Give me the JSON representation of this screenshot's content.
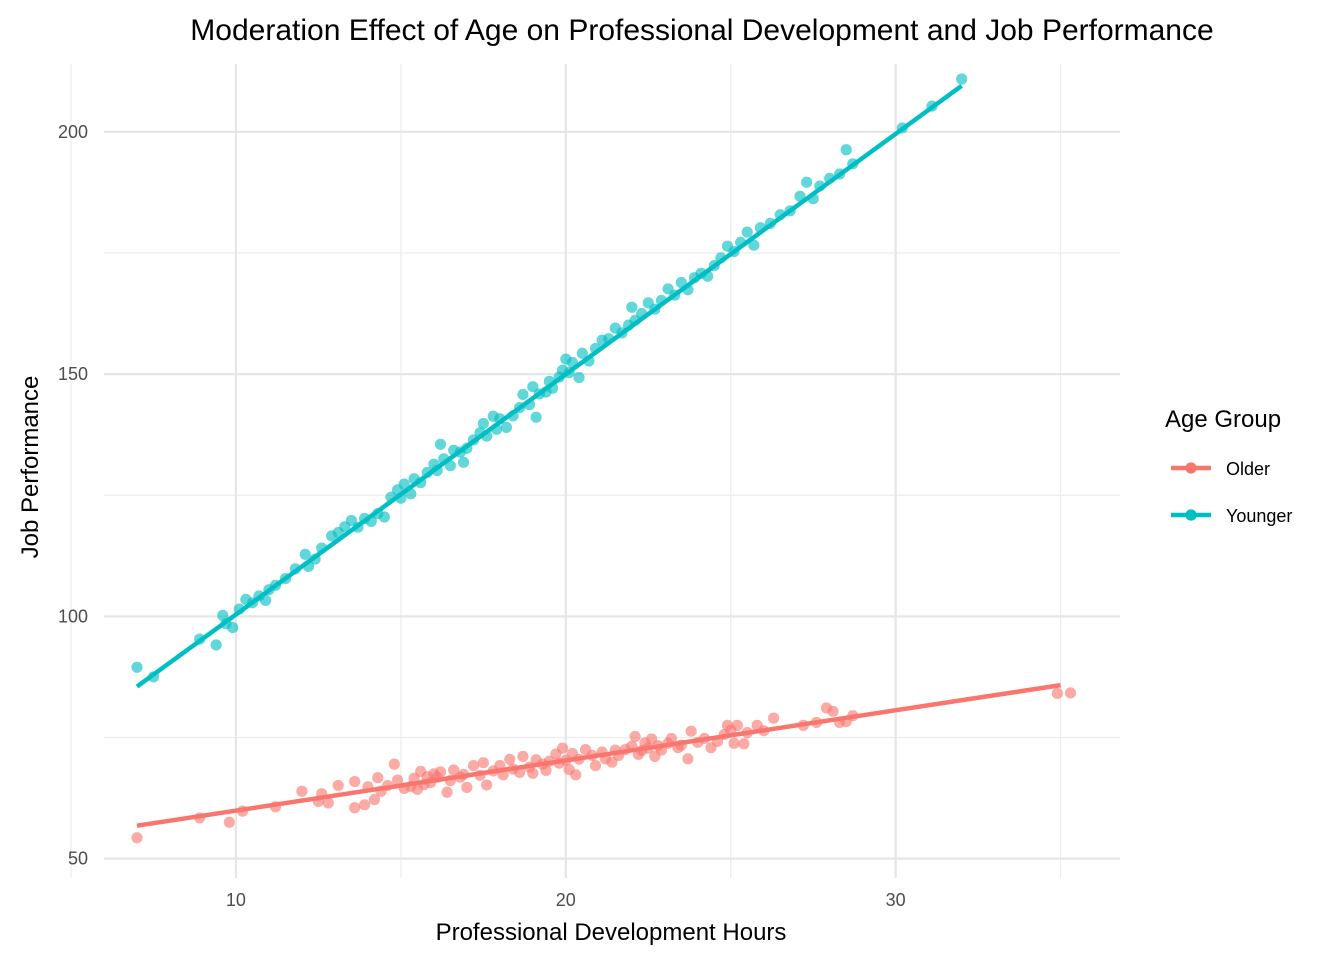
{
  "chart_data": {
    "type": "scatter",
    "title": "Moderation Effect of Age on Professional Development and Job Performance",
    "xlabel": "Professional Development Hours",
    "ylabel": "Job Performance",
    "xlim": [
      6,
      36.8
    ],
    "ylim": [
      46,
      214
    ],
    "x_ticks": [
      10,
      20,
      30
    ],
    "y_ticks": [
      50,
      100,
      150,
      200
    ],
    "x_tick_labels": [
      "10",
      "20",
      "30"
    ],
    "y_tick_labels": [
      "50",
      "100",
      "150",
      "200"
    ],
    "grid": true,
    "legend": {
      "title": "Age Group",
      "placement": "right"
    },
    "series": [
      {
        "name": "Older",
        "color": "#F8766D",
        "fit": {
          "x": [
            7.0,
            35.0
          ],
          "y": [
            56.8,
            85.8
          ]
        },
        "points": [
          [
            7.0,
            54.3
          ],
          [
            8.9,
            58.4
          ],
          [
            9.8,
            57.5
          ],
          [
            10.2,
            59.8
          ],
          [
            11.2,
            60.7
          ],
          [
            12.0,
            63.9
          ],
          [
            12.5,
            61.8
          ],
          [
            12.6,
            63.4
          ],
          [
            12.8,
            61.5
          ],
          [
            13.1,
            65.1
          ],
          [
            13.6,
            60.5
          ],
          [
            13.6,
            65.9
          ],
          [
            13.9,
            61.1
          ],
          [
            14.0,
            64.8
          ],
          [
            14.2,
            62.2
          ],
          [
            14.3,
            66.7
          ],
          [
            14.4,
            63.9
          ],
          [
            14.6,
            65.1
          ],
          [
            14.8,
            69.5
          ],
          [
            14.9,
            66.2
          ],
          [
            15.1,
            64.5
          ],
          [
            15.3,
            64.9
          ],
          [
            15.4,
            66.6
          ],
          [
            15.5,
            64.3
          ],
          [
            15.6,
            68.0
          ],
          [
            15.7,
            65.3
          ],
          [
            15.8,
            66.9
          ],
          [
            15.9,
            65.7
          ],
          [
            16.0,
            67.5
          ],
          [
            16.1,
            66.8
          ],
          [
            16.2,
            67.9
          ],
          [
            16.4,
            63.7
          ],
          [
            16.5,
            66.1
          ],
          [
            16.6,
            68.3
          ],
          [
            16.8,
            66.8
          ],
          [
            16.9,
            67.4
          ],
          [
            17.0,
            64.7
          ],
          [
            17.2,
            69.2
          ],
          [
            17.4,
            67.2
          ],
          [
            17.5,
            69.8
          ],
          [
            17.6,
            65.2
          ],
          [
            17.8,
            68.1
          ],
          [
            18.0,
            69.2
          ],
          [
            18.1,
            67.3
          ],
          [
            18.3,
            70.5
          ],
          [
            18.4,
            68.5
          ],
          [
            18.6,
            67.8
          ],
          [
            18.7,
            71.1
          ],
          [
            18.9,
            68.9
          ],
          [
            19.0,
            67.6
          ],
          [
            19.1,
            70.4
          ],
          [
            19.3,
            69.5
          ],
          [
            19.4,
            68.2
          ],
          [
            19.5,
            70.1
          ],
          [
            19.7,
            71.6
          ],
          [
            19.8,
            69.7
          ],
          [
            19.9,
            72.8
          ],
          [
            20.0,
            70.3
          ],
          [
            20.1,
            68.4
          ],
          [
            20.2,
            71.7
          ],
          [
            20.3,
            67.3
          ],
          [
            20.4,
            70.5
          ],
          [
            20.6,
            72.5
          ],
          [
            20.8,
            71.3
          ],
          [
            20.9,
            69.2
          ],
          [
            21.1,
            72.0
          ],
          [
            21.2,
            70.6
          ],
          [
            21.4,
            69.9
          ],
          [
            21.5,
            72.4
          ],
          [
            21.6,
            71.3
          ],
          [
            21.8,
            72.5
          ],
          [
            22.0,
            73.2
          ],
          [
            22.1,
            75.2
          ],
          [
            22.2,
            71.5
          ],
          [
            22.3,
            72.3
          ],
          [
            22.4,
            73.9
          ],
          [
            22.5,
            72.8
          ],
          [
            22.6,
            74.7
          ],
          [
            22.7,
            71.1
          ],
          [
            22.8,
            73.3
          ],
          [
            22.9,
            72.4
          ],
          [
            23.1,
            73.8
          ],
          [
            23.2,
            74.8
          ],
          [
            23.4,
            72.9
          ],
          [
            23.5,
            73.4
          ],
          [
            23.7,
            70.6
          ],
          [
            23.8,
            76.3
          ],
          [
            24.0,
            74.0
          ],
          [
            24.2,
            74.8
          ],
          [
            24.4,
            72.9
          ],
          [
            24.6,
            74.2
          ],
          [
            24.8,
            75.6
          ],
          [
            24.9,
            77.5
          ],
          [
            25.0,
            76.5
          ],
          [
            25.1,
            73.8
          ],
          [
            25.2,
            77.5
          ],
          [
            25.4,
            73.7
          ],
          [
            25.5,
            76.0
          ],
          [
            25.8,
            77.5
          ],
          [
            26.0,
            76.4
          ],
          [
            26.3,
            79.0
          ],
          [
            27.2,
            77.5
          ],
          [
            27.6,
            78.1
          ],
          [
            27.9,
            81.1
          ],
          [
            28.1,
            80.4
          ],
          [
            28.3,
            78.1
          ],
          [
            28.5,
            78.3
          ],
          [
            28.7,
            79.5
          ],
          [
            34.9,
            84.1
          ],
          [
            35.3,
            84.2
          ]
        ]
      },
      {
        "name": "Younger",
        "color": "#00BFC4",
        "fit": {
          "x": [
            7.0,
            32.0
          ],
          "y": [
            85.5,
            209.5
          ]
        },
        "points": [
          [
            7.0,
            89.5
          ],
          [
            7.5,
            87.5
          ],
          [
            8.9,
            95.3
          ],
          [
            9.4,
            94.1
          ],
          [
            9.6,
            100.2
          ],
          [
            9.7,
            98.5
          ],
          [
            9.9,
            97.7
          ],
          [
            10.1,
            101.5
          ],
          [
            10.3,
            103.5
          ],
          [
            10.5,
            102.8
          ],
          [
            10.7,
            104.2
          ],
          [
            10.9,
            103.3
          ],
          [
            11.0,
            105.5
          ],
          [
            11.2,
            106.4
          ],
          [
            11.5,
            107.8
          ],
          [
            11.8,
            109.8
          ],
          [
            12.1,
            112.8
          ],
          [
            12.2,
            110.3
          ],
          [
            12.4,
            111.8
          ],
          [
            12.6,
            114.1
          ],
          [
            12.9,
            116.6
          ],
          [
            13.1,
            117.3
          ],
          [
            13.3,
            118.5
          ],
          [
            13.5,
            119.8
          ],
          [
            13.7,
            118.4
          ],
          [
            13.9,
            120.2
          ],
          [
            14.1,
            119.6
          ],
          [
            14.3,
            121.2
          ],
          [
            14.5,
            120.5
          ],
          [
            14.7,
            124.6
          ],
          [
            14.9,
            126.1
          ],
          [
            15.0,
            124.4
          ],
          [
            15.1,
            127.3
          ],
          [
            15.3,
            125.3
          ],
          [
            15.4,
            128.4
          ],
          [
            15.6,
            127.6
          ],
          [
            15.8,
            129.7
          ],
          [
            16.0,
            131.4
          ],
          [
            16.1,
            130.1
          ],
          [
            16.2,
            135.5
          ],
          [
            16.3,
            132.5
          ],
          [
            16.5,
            131.1
          ],
          [
            16.6,
            134.3
          ],
          [
            16.8,
            133.9
          ],
          [
            16.9,
            131.8
          ],
          [
            17.0,
            134.7
          ],
          [
            17.2,
            136.4
          ],
          [
            17.4,
            137.9
          ],
          [
            17.5,
            139.8
          ],
          [
            17.6,
            137.2
          ],
          [
            17.8,
            141.3
          ],
          [
            17.9,
            138.6
          ],
          [
            18.0,
            140.8
          ],
          [
            18.2,
            139.0
          ],
          [
            18.4,
            141.4
          ],
          [
            18.6,
            143.1
          ],
          [
            18.7,
            145.8
          ],
          [
            18.9,
            143.7
          ],
          [
            19.0,
            147.4
          ],
          [
            19.1,
            141.1
          ],
          [
            19.2,
            145.9
          ],
          [
            19.4,
            146.3
          ],
          [
            19.5,
            148.5
          ],
          [
            19.6,
            147.1
          ],
          [
            19.8,
            149.4
          ],
          [
            19.9,
            150.8
          ],
          [
            20.0,
            153.1
          ],
          [
            20.1,
            150.3
          ],
          [
            20.2,
            152.4
          ],
          [
            20.4,
            149.3
          ],
          [
            20.5,
            154.3
          ],
          [
            20.7,
            152.7
          ],
          [
            20.9,
            155.3
          ],
          [
            21.1,
            157.0
          ],
          [
            21.3,
            157.3
          ],
          [
            21.5,
            159.5
          ],
          [
            21.7,
            158.5
          ],
          [
            21.9,
            160.1
          ],
          [
            22.0,
            163.8
          ],
          [
            22.1,
            161.1
          ],
          [
            22.3,
            162.5
          ],
          [
            22.5,
            164.7
          ],
          [
            22.7,
            163.4
          ],
          [
            22.9,
            165.2
          ],
          [
            23.1,
            167.6
          ],
          [
            23.3,
            166.3
          ],
          [
            23.5,
            168.9
          ],
          [
            23.7,
            167.4
          ],
          [
            23.9,
            169.9
          ],
          [
            24.1,
            170.8
          ],
          [
            24.3,
            170.2
          ],
          [
            24.5,
            172.4
          ],
          [
            24.7,
            174.0
          ],
          [
            24.9,
            176.4
          ],
          [
            25.1,
            175.3
          ],
          [
            25.3,
            177.2
          ],
          [
            25.5,
            179.3
          ],
          [
            25.7,
            176.6
          ],
          [
            25.9,
            180.2
          ],
          [
            26.2,
            181.1
          ],
          [
            26.5,
            182.9
          ],
          [
            26.8,
            183.7
          ],
          [
            27.1,
            186.7
          ],
          [
            27.3,
            189.6
          ],
          [
            27.5,
            186.2
          ],
          [
            27.7,
            188.8
          ],
          [
            28.0,
            190.4
          ],
          [
            28.3,
            191.3
          ],
          [
            28.5,
            196.3
          ],
          [
            28.7,
            193.4
          ],
          [
            30.2,
            200.8
          ],
          [
            31.1,
            205.3
          ],
          [
            32.0,
            210.9
          ]
        ]
      }
    ]
  }
}
